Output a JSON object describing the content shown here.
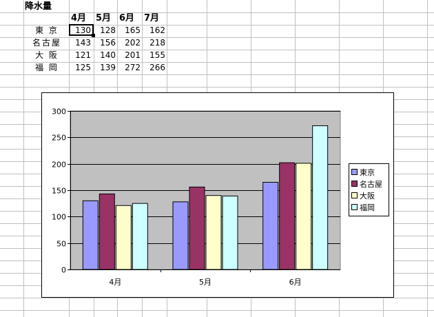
{
  "sheet": {
    "title": "降水量",
    "months": [
      "4月",
      "5月",
      "6月",
      "7月"
    ],
    "rows": [
      {
        "city": "東 京",
        "values": [
          "130",
          "128",
          "165",
          "162"
        ]
      },
      {
        "city": "名古屋",
        "values": [
          "143",
          "156",
          "202",
          "218"
        ]
      },
      {
        "city": "大 阪",
        "values": [
          "121",
          "140",
          "201",
          "155"
        ]
      },
      {
        "city": "福 岡",
        "values": [
          "125",
          "139",
          "272",
          "266"
        ]
      }
    ]
  },
  "chart_data": {
    "type": "bar",
    "categories": [
      "4月",
      "5月",
      "6月"
    ],
    "series": [
      {
        "name": "東京",
        "values": [
          130,
          128,
          165
        ],
        "color": "#9999FF"
      },
      {
        "name": "名古屋",
        "values": [
          143,
          156,
          202
        ],
        "color": "#993366"
      },
      {
        "name": "大阪",
        "values": [
          121,
          140,
          201
        ],
        "color": "#FFFFCC"
      },
      {
        "name": "福岡",
        "values": [
          125,
          139,
          272
        ],
        "color": "#CCFFFF"
      }
    ],
    "y_ticks": [
      "0",
      "50",
      "100",
      "150",
      "200",
      "250",
      "300"
    ],
    "ylim": [
      0,
      300
    ],
    "grid": true,
    "plot_background": "#C0C0C0",
    "legend_position": "right"
  }
}
